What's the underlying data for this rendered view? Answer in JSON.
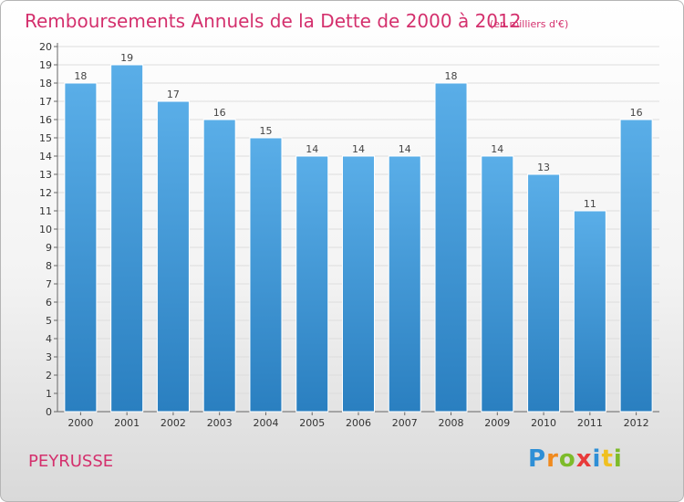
{
  "chart_data": {
    "type": "bar",
    "title": "Remboursements Annuels de la Dette de 2000 à 2012",
    "subtitle": "(en milliers d'€)",
    "categories": [
      "2000",
      "2001",
      "2002",
      "2003",
      "2004",
      "2005",
      "2006",
      "2007",
      "2008",
      "2009",
      "2010",
      "2011",
      "2012"
    ],
    "values": [
      18,
      19,
      17,
      16,
      15,
      14,
      14,
      14,
      18,
      14,
      13,
      11,
      16
    ],
    "ylim": [
      0,
      20
    ],
    "yticks": [
      0,
      1,
      2,
      3,
      4,
      5,
      6,
      7,
      8,
      9,
      10,
      11,
      12,
      13,
      14,
      15,
      16,
      17,
      18,
      19,
      20
    ],
    "grid": true,
    "bar_color_top": "#5aaee8",
    "bar_color_bottom": "#2a7fc0"
  },
  "footer": {
    "place_name": "PEYRUSSE",
    "logo_letters": [
      "P",
      "r",
      "o",
      "x",
      "i",
      "t",
      "i"
    ],
    "logo_colors": [
      "#2e8fd6",
      "#f08a1e",
      "#7dbb2a",
      "#e83a3a",
      "#2e8fd6",
      "#f0c020",
      "#7dbb2a"
    ]
  }
}
